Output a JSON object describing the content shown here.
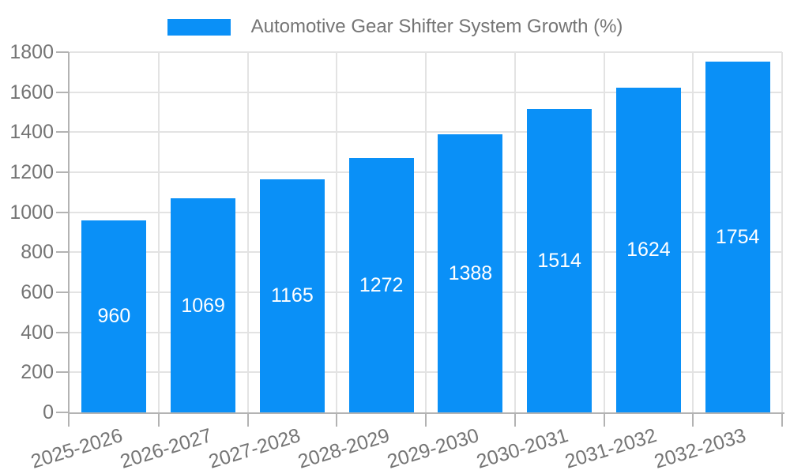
{
  "legend": {
    "label": "Automotive Gear Shifter System Growth (%)"
  },
  "chart_data": {
    "type": "bar",
    "title": "Automotive Gear Shifter System Growth (%)",
    "categories": [
      "2025-2026",
      "2026-2027",
      "2027-2028",
      "2028-2029",
      "2029-2030",
      "2030-2031",
      "2031-2032",
      "2032-2033"
    ],
    "values": [
      960,
      1069,
      1165,
      1272,
      1388,
      1514,
      1624,
      1754
    ],
    "xlabel": "",
    "ylabel": "",
    "ylim": [
      0,
      1800
    ],
    "ytick_step": 200,
    "yticks": [
      0,
      200,
      400,
      600,
      800,
      1000,
      1200,
      1400,
      1600,
      1800
    ],
    "grid": true,
    "legend_position": "top",
    "colors": {
      "bar": "#0a90f7",
      "value_label": "#ffffff",
      "tick_label": "#757575",
      "gridline": "#e3e3e3",
      "axis": "#b3b3b3",
      "background": "#ffffff"
    }
  }
}
